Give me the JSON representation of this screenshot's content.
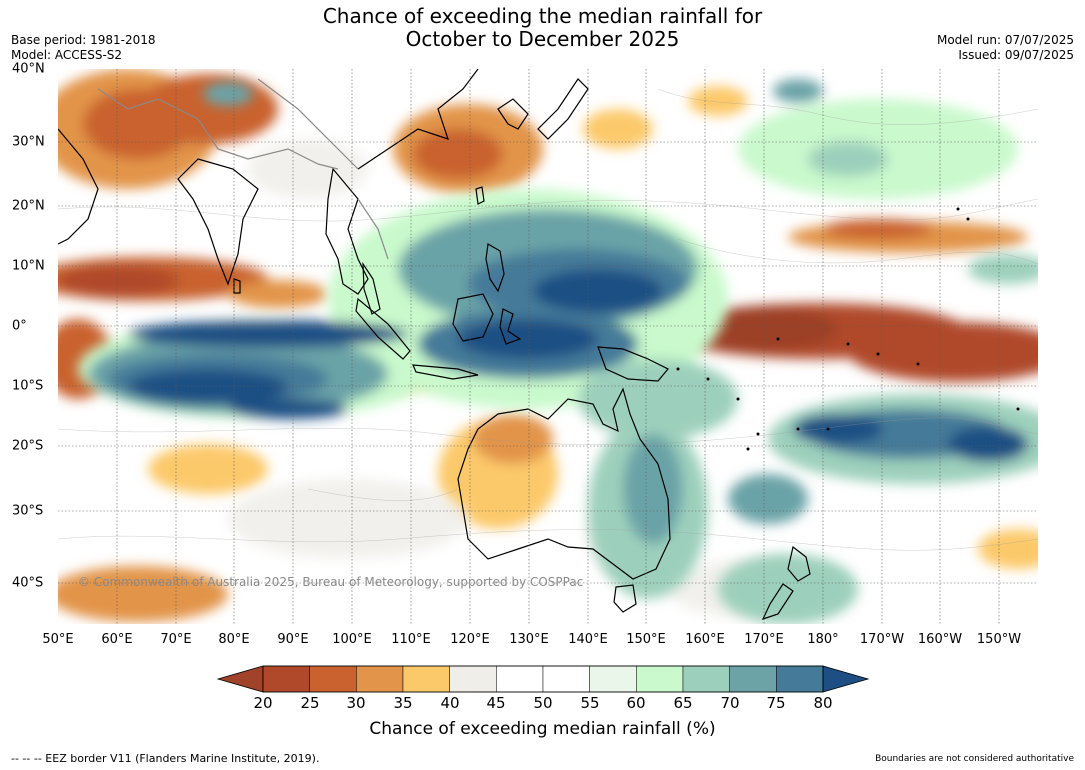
{
  "title_line1": "Chance of exceeding the median rainfall for",
  "title_line2": "October to December 2025",
  "base_period": "Base period: 1981-2018",
  "model": "Model: ACCESS-S2",
  "model_run": "Model run: 07/07/2025",
  "issued": "Issued: 09/07/2025",
  "copyright": "© Commonwealth of Australia 2025, Bureau of Meteorology, supported by COSPPac",
  "lat_ticks": [
    "40°N",
    "30°N",
    "20°N",
    "10°N",
    "0°",
    "10°S",
    "20°S",
    "30°S",
    "40°S"
  ],
  "lon_ticks": [
    "50°E",
    "60°E",
    "70°E",
    "80°E",
    "90°E",
    "100°E",
    "110°E",
    "120°E",
    "130°E",
    "140°E",
    "150°E",
    "160°E",
    "170°E",
    "180°",
    "170°W",
    "160°W",
    "150°W"
  ],
  "colorbar": {
    "labels": [
      "20",
      "25",
      "30",
      "35",
      "40",
      "45",
      "50",
      "55",
      "60",
      "65",
      "70",
      "75",
      "80"
    ],
    "title": "Chance of exceeding median rainfall (%)",
    "colors": {
      "under": "#a0432a",
      "bins": [
        "#b0492a",
        "#c9622e",
        "#e2944a",
        "#fcc96a",
        "#efeee9",
        "#ffffff",
        "#ffffff",
        "#eaf6ea",
        "#c9f9cc",
        "#9dd0bc",
        "#6ba3a7",
        "#457a99"
      ],
      "over": "#1d4f84"
    }
  },
  "footer_left": "--  --  -- EEZ border V11 (Flanders Marine Institute, 2019).",
  "footer_right": "Boundaries are not considered authoritative"
}
